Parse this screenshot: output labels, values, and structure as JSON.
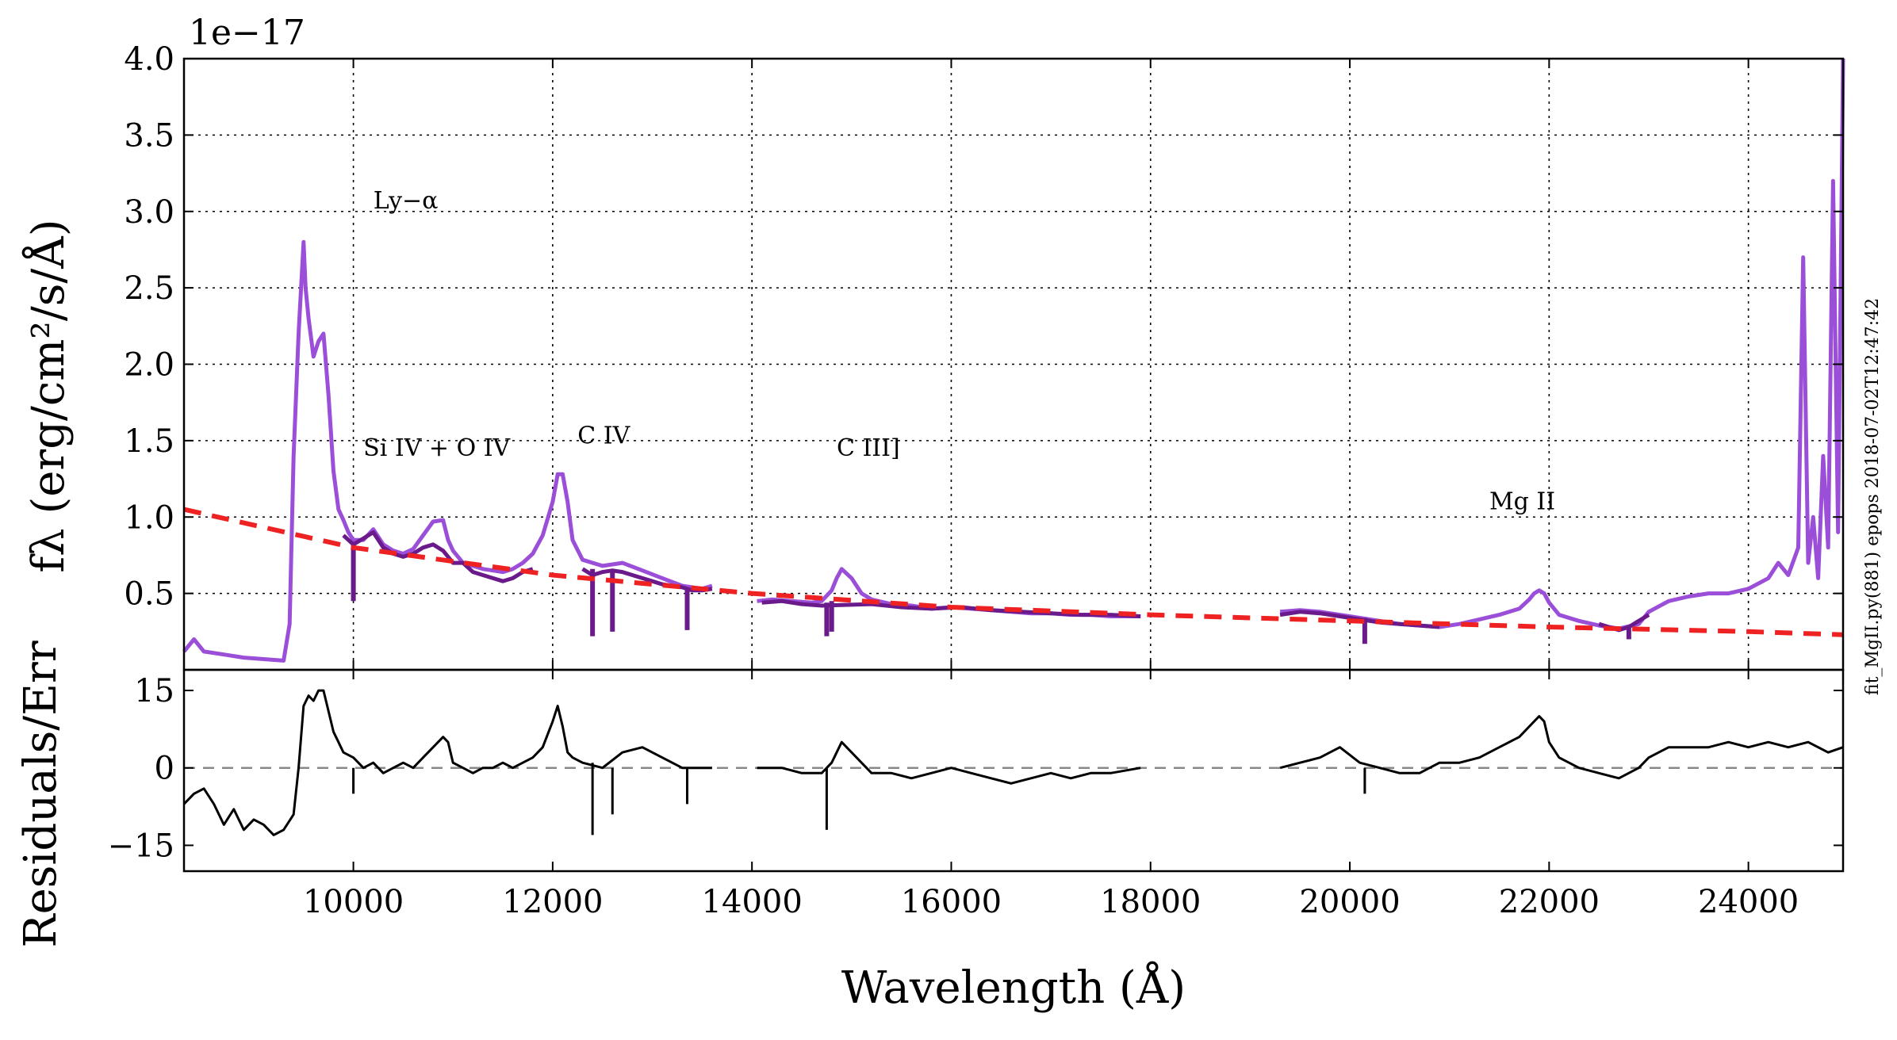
{
  "chart_data": {
    "type": "line",
    "offset_label": "1e−17",
    "xlabel": "Wavelength (Å)",
    "xlim": [
      8300,
      24950
    ],
    "xticks": [
      {
        "value": 10000,
        "label": "10000"
      },
      {
        "value": 12000,
        "label": "12000"
      },
      {
        "value": 14000,
        "label": "14000"
      },
      {
        "value": 16000,
        "label": "16000"
      },
      {
        "value": 18000,
        "label": "18000"
      },
      {
        "value": 20000,
        "label": "20000"
      },
      {
        "value": 22000,
        "label": "22000"
      },
      {
        "value": 24000,
        "label": "24000"
      }
    ],
    "side_note": "fit_MgII.py(881) epops 2018-07-02T12:47:42",
    "top_panel": {
      "ylabel": "fλ (erg/cm²/s/Å)",
      "ylim": [
        0,
        4.0
      ],
      "yticks": [
        {
          "value": 0.5,
          "label": "0.5"
        },
        {
          "value": 1.0,
          "label": "1.0"
        },
        {
          "value": 1.5,
          "label": "1.5"
        },
        {
          "value": 2.0,
          "label": "2.0"
        },
        {
          "value": 2.5,
          "label": "2.5"
        },
        {
          "value": 3.0,
          "label": "3.0"
        },
        {
          "value": 3.5,
          "label": "3.5"
        },
        {
          "value": 4.0,
          "label": "4.0"
        }
      ],
      "grid": true,
      "annotations": [
        {
          "text": "Ly−α",
          "x": 10200,
          "y": 3.02
        },
        {
          "text": "Si IV + O IV",
          "x": 10100,
          "y": 1.4
        },
        {
          "text": "C IV",
          "x": 12250,
          "y": 1.48
        },
        {
          "text": "C III]",
          "x": 14850,
          "y": 1.4
        },
        {
          "text": "Mg II",
          "x": 21400,
          "y": 1.05
        }
      ],
      "series": [
        {
          "name": "spectrum",
          "color": "#9b4fd8",
          "x": [
            8300,
            8400,
            8500,
            8700,
            8900,
            9100,
            9300,
            9360,
            9400,
            9450,
            9500,
            9520,
            9550,
            9600,
            9650,
            9700,
            9750,
            9800,
            9850,
            9900,
            9950,
            10000,
            10100,
            10200,
            10300,
            10400,
            10500,
            10600,
            10700,
            10800,
            10900,
            10950,
            11000,
            11100,
            11200,
            11300,
            11400,
            11500,
            11600,
            11700,
            11800,
            11900,
            12000,
            12050,
            12100,
            12150,
            12200,
            12300,
            12500,
            12700,
            12900,
            13100,
            13300,
            13500,
            13600
          ],
          "y": [
            0.12,
            0.2,
            0.12,
            0.1,
            0.08,
            0.07,
            0.06,
            0.3,
            1.4,
            2.2,
            2.8,
            2.5,
            2.3,
            2.05,
            2.15,
            2.2,
            1.8,
            1.3,
            1.05,
            0.98,
            0.9,
            0.85,
            0.85,
            0.92,
            0.82,
            0.78,
            0.76,
            0.79,
            0.88,
            0.97,
            0.98,
            0.85,
            0.78,
            0.7,
            0.68,
            0.66,
            0.65,
            0.64,
            0.66,
            0.7,
            0.76,
            0.88,
            1.1,
            1.28,
            1.28,
            1.1,
            0.85,
            0.72,
            0.68,
            0.7,
            0.65,
            0.6,
            0.55,
            0.53,
            0.55
          ]
        },
        {
          "name": "spectrum-segment-2",
          "color": "#9b4fd8",
          "x": [
            14050,
            14200,
            14400,
            14600,
            14700,
            14800,
            14850,
            14900,
            15000,
            15100,
            15200,
            15400,
            15600,
            15800,
            16000,
            16200,
            16400,
            16600,
            16800,
            17000,
            17200,
            17400,
            17600,
            17800,
            17900
          ],
          "y": [
            0.45,
            0.46,
            0.45,
            0.44,
            0.45,
            0.52,
            0.6,
            0.66,
            0.6,
            0.5,
            0.46,
            0.43,
            0.42,
            0.4,
            0.41,
            0.4,
            0.39,
            0.38,
            0.37,
            0.37,
            0.36,
            0.36,
            0.35,
            0.35,
            0.35
          ]
        },
        {
          "name": "spectrum-segment-3",
          "color": "#9b4fd8",
          "x": [
            19300,
            19500,
            19700,
            19900,
            20100,
            20300,
            20500,
            20700,
            20900,
            21100,
            21300,
            21500,
            21700,
            21800,
            21850,
            21900,
            21950,
            22000,
            22100,
            22300,
            22500,
            22700,
            22900,
            23000,
            23200,
            23400,
            23600,
            23800,
            24000,
            24200,
            24300,
            24400,
            24500,
            24550,
            24600,
            24650,
            24700,
            24750,
            24800,
            24850,
            24900,
            24950
          ],
          "y": [
            0.38,
            0.39,
            0.38,
            0.36,
            0.34,
            0.32,
            0.3,
            0.29,
            0.28,
            0.3,
            0.33,
            0.36,
            0.4,
            0.46,
            0.5,
            0.52,
            0.5,
            0.44,
            0.36,
            0.32,
            0.29,
            0.27,
            0.3,
            0.38,
            0.45,
            0.48,
            0.5,
            0.5,
            0.53,
            0.6,
            0.7,
            0.62,
            0.8,
            2.7,
            0.7,
            1.0,
            0.6,
            1.4,
            0.8,
            3.2,
            0.9,
            4.0
          ]
        },
        {
          "name": "spectrum-dark-1",
          "color": "#6a1a8a",
          "x": [
            9900,
            10000,
            10100,
            10200,
            10300,
            10400,
            10500,
            10600,
            10700,
            10800,
            10900,
            11000,
            11100,
            11200,
            11300,
            11400,
            11500,
            11600,
            11700,
            11800
          ],
          "y": [
            0.88,
            0.82,
            0.86,
            0.9,
            0.8,
            0.76,
            0.74,
            0.76,
            0.8,
            0.82,
            0.78,
            0.7,
            0.7,
            0.64,
            0.62,
            0.6,
            0.58,
            0.6,
            0.64,
            0.66
          ]
        },
        {
          "name": "spectrum-dark-2",
          "color": "#6a1a8a",
          "x": [
            12300,
            12400,
            12500,
            12600,
            12700,
            12800,
            12900,
            13000,
            13100,
            13200,
            13300,
            13400,
            13500,
            13600
          ],
          "y": [
            0.66,
            0.62,
            0.64,
            0.65,
            0.64,
            0.62,
            0.6,
            0.58,
            0.56,
            0.55,
            0.54,
            0.52,
            0.52,
            0.53
          ]
        },
        {
          "name": "spectrum-dark-3",
          "color": "#6a1a8a",
          "x": [
            14100,
            14300,
            14500,
            14700,
            15200,
            15500,
            15800,
            16100,
            16400,
            16700,
            17000,
            17300,
            17600,
            17900
          ],
          "y": [
            0.44,
            0.45,
            0.43,
            0.42,
            0.43,
            0.41,
            0.4,
            0.41,
            0.39,
            0.38,
            0.37,
            0.36,
            0.36,
            0.35
          ]
        },
        {
          "name": "spectrum-dark-4",
          "color": "#6a1a8a",
          "x": [
            19300,
            19500,
            19700,
            19900,
            20100,
            20300,
            20500,
            20700,
            20900
          ],
          "y": [
            0.36,
            0.38,
            0.37,
            0.35,
            0.33,
            0.31,
            0.3,
            0.29,
            0.28
          ]
        },
        {
          "name": "spectrum-dark-5",
          "color": "#6a1a8a",
          "x": [
            22500,
            22600,
            22700,
            22800,
            22900,
            23000
          ],
          "y": [
            0.3,
            0.28,
            0.26,
            0.28,
            0.32,
            0.36
          ]
        },
        {
          "name": "continuum-fit",
          "color": "#ee2222",
          "dashed": true,
          "x": [
            8300,
            10000,
            12000,
            14000,
            16000,
            18000,
            20000,
            22000,
            24000,
            24950
          ],
          "y": [
            1.05,
            0.8,
            0.62,
            0.5,
            0.41,
            0.36,
            0.32,
            0.28,
            0.25,
            0.23
          ]
        }
      ],
      "absorption_dips": [
        {
          "x": 10000,
          "top": 0.82,
          "bottom": 0.45,
          "color": "#6a1a8a"
        },
        {
          "x": 12400,
          "top": 0.66,
          "bottom": 0.22,
          "color": "#6a1a8a"
        },
        {
          "x": 12600,
          "top": 0.64,
          "bottom": 0.25,
          "color": "#6a1a8a"
        },
        {
          "x": 13350,
          "top": 0.54,
          "bottom": 0.26,
          "color": "#6a1a8a"
        },
        {
          "x": 14750,
          "top": 0.44,
          "bottom": 0.22,
          "color": "#6a1a8a"
        },
        {
          "x": 14800,
          "top": 0.45,
          "bottom": 0.25,
          "color": "#6a1a8a"
        },
        {
          "x": 20150,
          "top": 0.34,
          "bottom": 0.17,
          "color": "#6a1a8a"
        },
        {
          "x": 22800,
          "top": 0.28,
          "bottom": 0.2,
          "color": "#6a1a8a"
        }
      ]
    },
    "bottom_panel": {
      "ylabel": "Residuals/Err",
      "ylim": [
        -20,
        19
      ],
      "yticks": [
        {
          "value": -15,
          "label": "−15"
        },
        {
          "value": 0,
          "label": "0"
        },
        {
          "value": 15,
          "label": "15"
        }
      ],
      "zero_line": true,
      "series": [
        {
          "name": "residuals-1",
          "color": "#000000",
          "x": [
            8300,
            8400,
            8500,
            8600,
            8700,
            8800,
            8900,
            9000,
            9100,
            9200,
            9300,
            9400,
            9450,
            9500,
            9550,
            9600,
            9650,
            9700,
            9750,
            9800,
            9850,
            9900,
            10000,
            10100,
            10200,
            10300,
            10400,
            10500,
            10600,
            10700,
            10800,
            10900,
            10950,
            11000,
            11100,
            11200,
            11300,
            11400,
            11500,
            11600,
            11700,
            11800,
            11900,
            12000,
            12050,
            12100,
            12150,
            12200,
            12300,
            12500,
            12700,
            12900,
            13000,
            13100,
            13300,
            13500,
            13600
          ],
          "y": [
            -7,
            -5,
            -4,
            -7,
            -11,
            -8,
            -12,
            -10,
            -11,
            -13,
            -12,
            -9,
            0,
            12,
            14,
            13,
            15,
            15,
            11,
            7,
            5,
            3,
            2,
            0,
            1,
            -1,
            0,
            1,
            0,
            2,
            4,
            6,
            5,
            1,
            0,
            -1,
            0,
            0,
            1,
            0,
            1,
            2,
            4,
            9,
            12,
            8,
            3,
            2,
            1,
            0,
            3,
            4,
            3,
            2,
            0,
            0,
            0
          ]
        },
        {
          "name": "residuals-2",
          "color": "#000000",
          "x": [
            14050,
            14300,
            14500,
            14700,
            14800,
            14900,
            15000,
            15200,
            15400,
            15600,
            15800,
            16000,
            16200,
            16400,
            16600,
            16800,
            17000,
            17200,
            17400,
            17600,
            17900
          ],
          "y": [
            0,
            0,
            -1,
            -1,
            1,
            5,
            3,
            -1,
            -1,
            -2,
            -1,
            0,
            -1,
            -2,
            -3,
            -2,
            -1,
            -2,
            -1,
            -1,
            0
          ]
        },
        {
          "name": "residuals-3",
          "color": "#000000",
          "x": [
            19300,
            19500,
            19700,
            19900,
            20100,
            20300,
            20500,
            20700,
            20900,
            21100,
            21300,
            21500,
            21700,
            21800,
            21850,
            21900,
            21950,
            22000,
            22100,
            22300,
            22500,
            22700,
            22900,
            23000,
            23200,
            23400,
            23600,
            23800,
            24000,
            24200,
            24400,
            24600,
            24800,
            24950
          ],
          "y": [
            0,
            1,
            2,
            4,
            1,
            0,
            -1,
            -1,
            1,
            1,
            2,
            4,
            6,
            8,
            9,
            10,
            9,
            5,
            2,
            0,
            -1,
            -2,
            0,
            2,
            4,
            4,
            4,
            5,
            4,
            5,
            4,
            5,
            3,
            4
          ]
        }
      ],
      "absorption_dips": [
        {
          "x": 10000,
          "top": 0,
          "bottom": -5,
          "color": "#000000"
        },
        {
          "x": 12400,
          "top": 1,
          "bottom": -13,
          "color": "#000000"
        },
        {
          "x": 12600,
          "top": 0,
          "bottom": -9,
          "color": "#000000"
        },
        {
          "x": 13350,
          "top": 0,
          "bottom": -7,
          "color": "#000000"
        },
        {
          "x": 14750,
          "top": 0,
          "bottom": -12,
          "color": "#000000"
        },
        {
          "x": 20150,
          "top": 0,
          "bottom": -5,
          "color": "#000000"
        }
      ]
    }
  }
}
